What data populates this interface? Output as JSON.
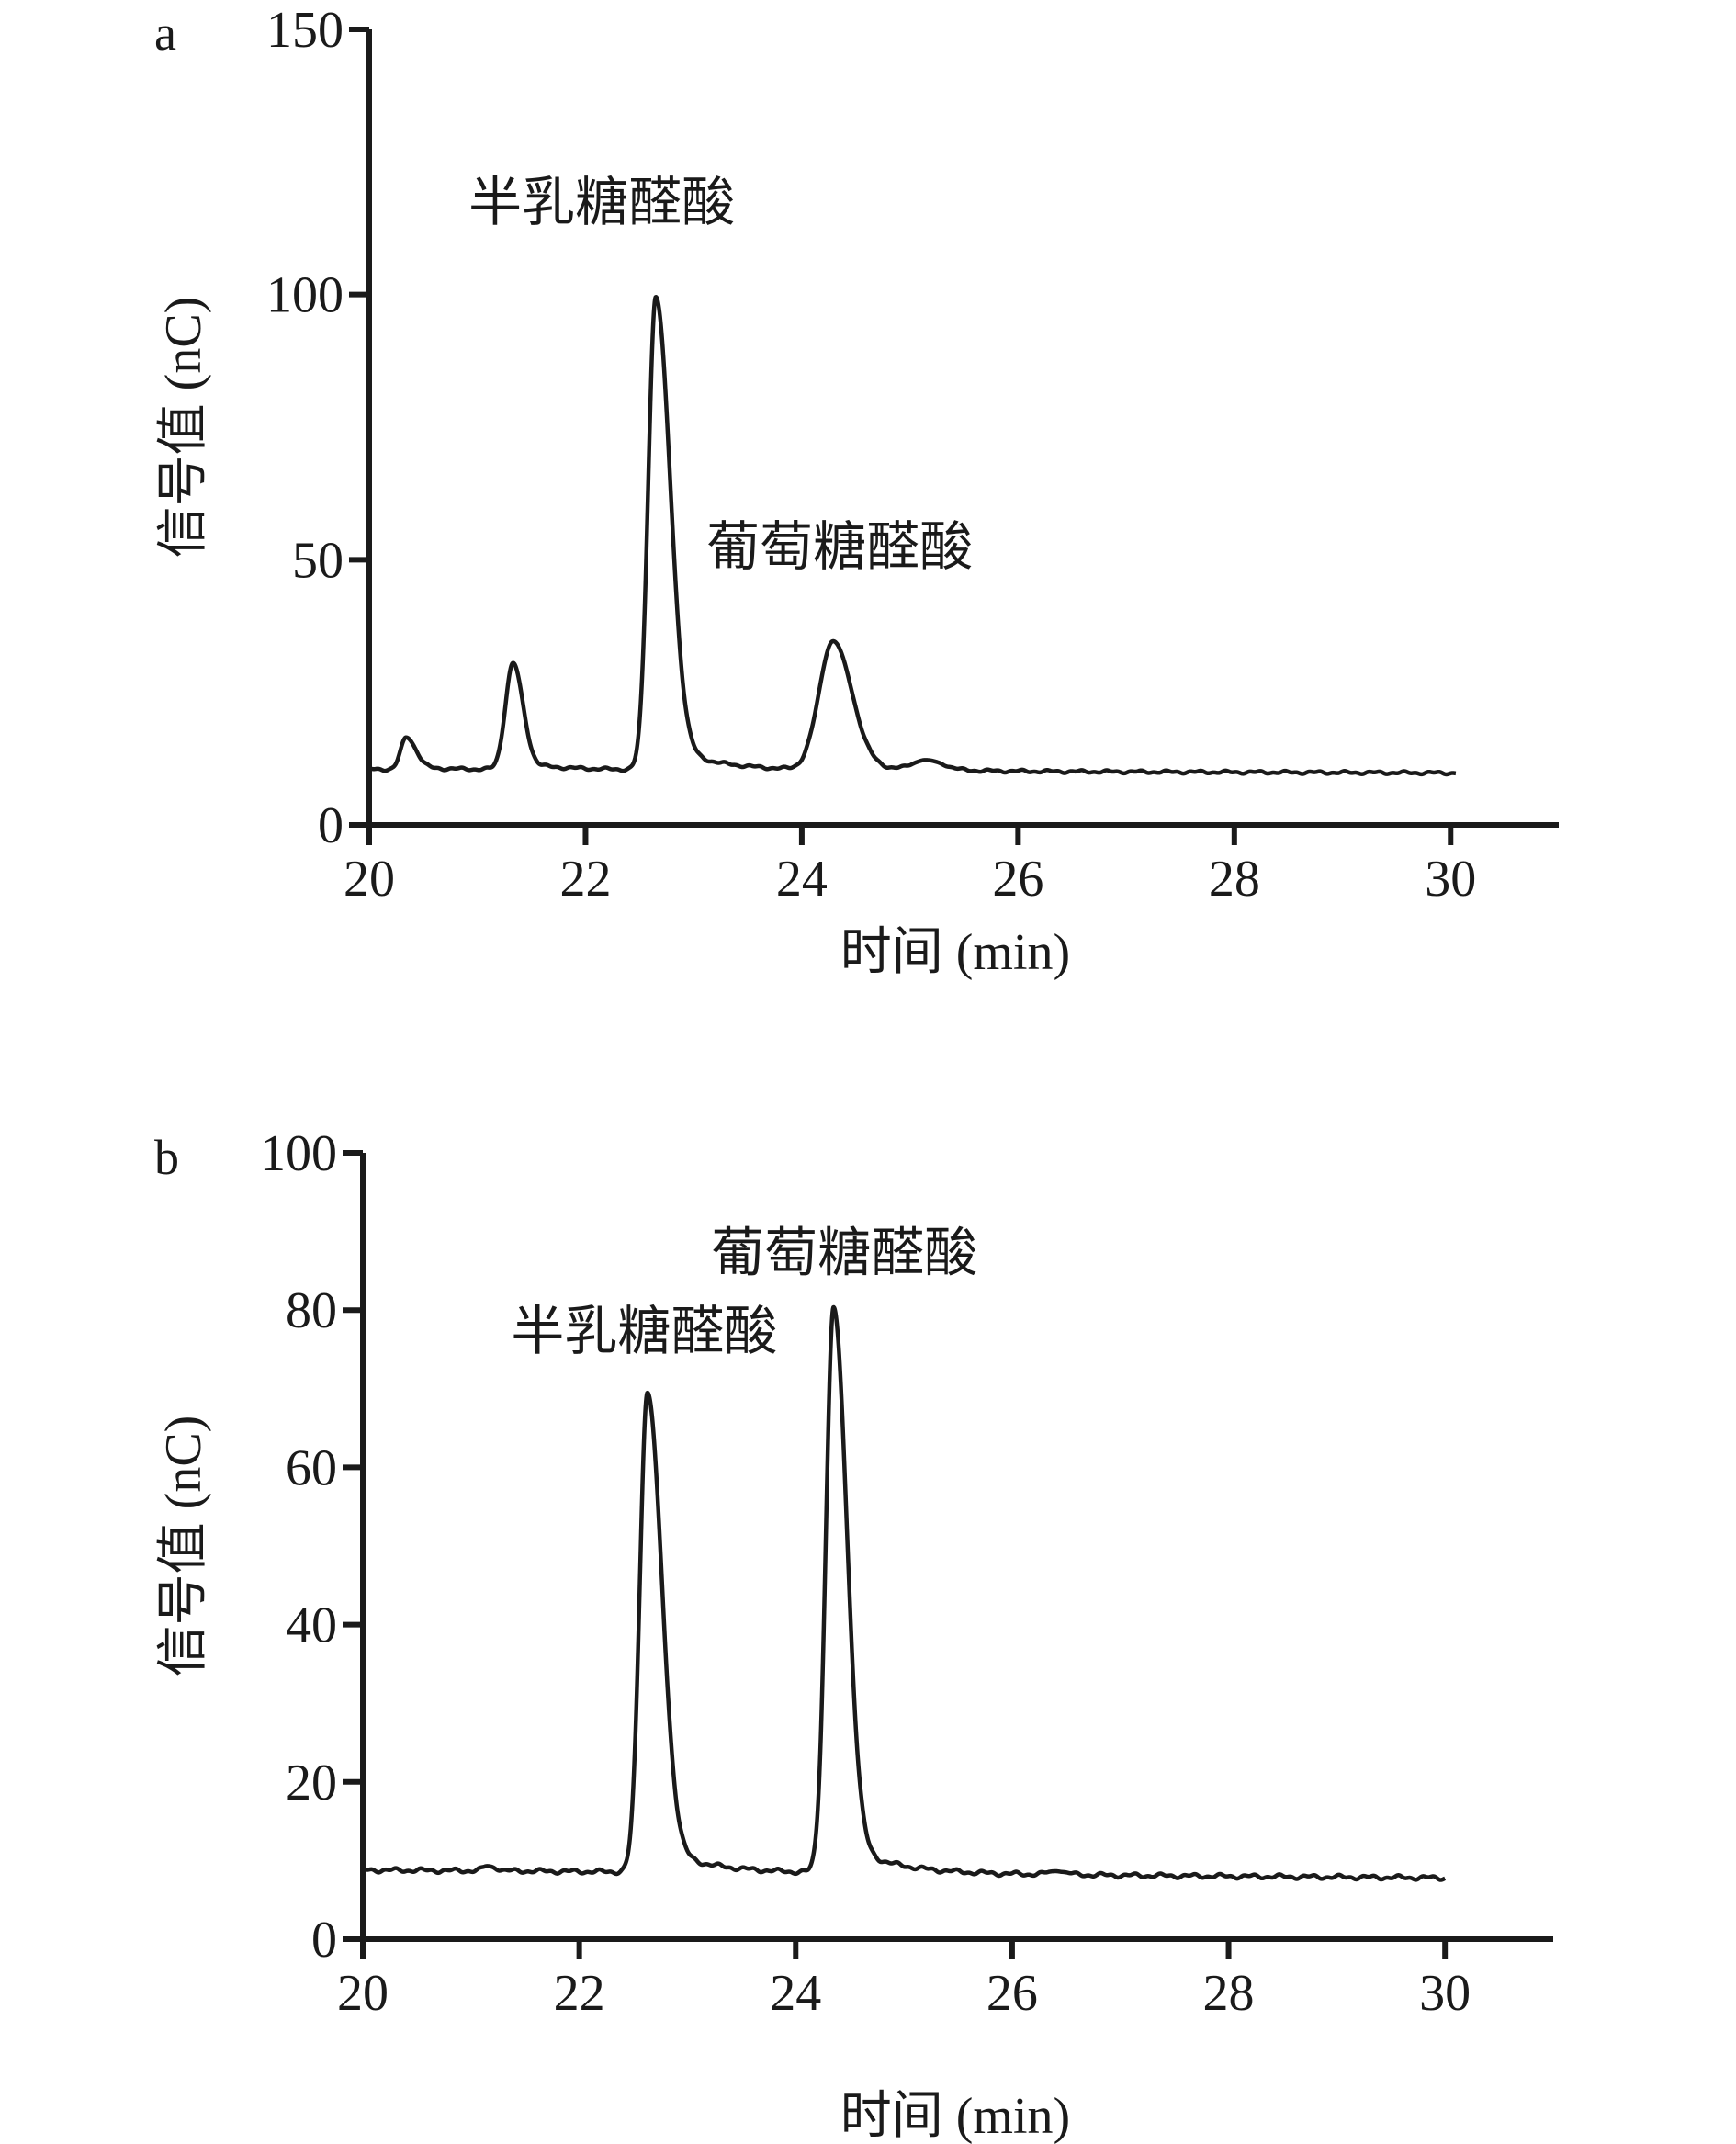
{
  "chart_data": [
    {
      "type": "line",
      "panel_letter": "a",
      "xlabel": "时间 (min)",
      "ylabel": "信号值 (nC)",
      "xlim": [
        20,
        31
      ],
      "ylim": [
        0,
        150
      ],
      "x_ticks": [
        20,
        22,
        24,
        26,
        28,
        30
      ],
      "y_ticks": [
        0,
        50,
        100,
        150
      ],
      "baseline": 10.5,
      "annotations": [
        {
          "text": "半乳糖醛酸",
          "x": 22.15,
          "y": 114
        },
        {
          "text": "葡萄糖醛酸",
          "x": 24.35,
          "y": 49
        }
      ],
      "series": [
        {
          "peaks": [
            {
              "rt": 20.34,
              "height": 16.5,
              "sigma_left": 0.05,
              "sigma_right": 0.09
            },
            {
              "rt": 21.33,
              "height": 30.5,
              "sigma_left": 0.07,
              "sigma_right": 0.09
            },
            {
              "rt": 22.65,
              "height": 99.5,
              "sigma_left": 0.07,
              "sigma_right": 0.13
            },
            {
              "rt": 24.29,
              "height": 34.5,
              "sigma_left": 0.13,
              "sigma_right": 0.17
            },
            {
              "rt": 25.15,
              "height": 12.0,
              "sigma_left": 0.12,
              "sigma_right": 0.15
            }
          ],
          "x_end": 30.05,
          "end_value": 9.8
        }
      ]
    },
    {
      "type": "line",
      "panel_letter": "b",
      "xlabel": "时间 (min)",
      "ylabel": "信号值 (nC)",
      "xlim": [
        20,
        31
      ],
      "ylim": [
        0,
        100
      ],
      "x_ticks": [
        20,
        22,
        24,
        26,
        28,
        30
      ],
      "y_ticks": [
        0,
        20,
        40,
        60,
        80,
        100
      ],
      "baseline": 8.8,
      "annotations": [
        {
          "text": "半乳糖醛酸",
          "x": 22.6,
          "y": 75
        },
        {
          "text": "葡萄糖醛酸",
          "x": 24.45,
          "y": 85
        }
      ],
      "series": [
        {
          "peaks": [
            {
              "rt": 21.15,
              "height": 9.3,
              "sigma_left": 0.05,
              "sigma_right": 0.07
            },
            {
              "rt": 22.63,
              "height": 69.5,
              "sigma_left": 0.07,
              "sigma_right": 0.13
            },
            {
              "rt": 24.35,
              "height": 80.3,
              "sigma_left": 0.07,
              "sigma_right": 0.12
            },
            {
              "rt": 26.4,
              "height": 8.6,
              "sigma_left": 0.08,
              "sigma_right": 0.1
            }
          ],
          "x_end": 30.0,
          "end_value": 7.8
        }
      ]
    }
  ]
}
